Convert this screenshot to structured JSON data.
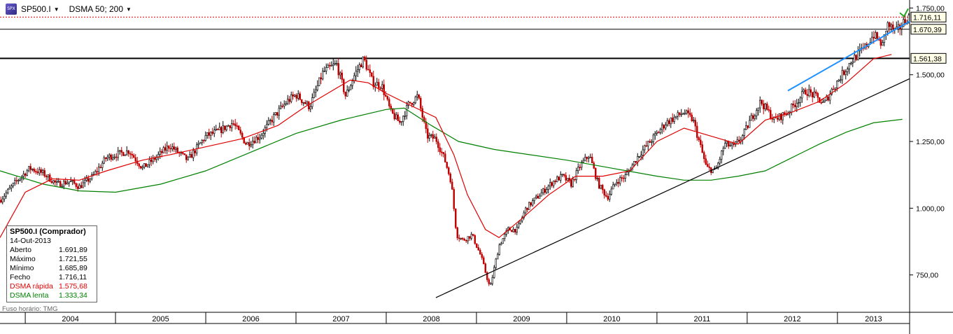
{
  "toolbar": {
    "symbol": "SP500.I",
    "indicator": "DSMA 50; 200",
    "symbol_icon": "chart-symbol-icon"
  },
  "infobox": {
    "title": "SP500.I (Comprador)",
    "date": "14-Out-2013",
    "rows": [
      {
        "label": "Aberto",
        "value": "1.691,89"
      },
      {
        "label": "Máximo",
        "value": "1.721,55"
      },
      {
        "label": "Mínimo",
        "value": "1.685,89"
      },
      {
        "label": "Fecho",
        "value": "1.716,11"
      },
      {
        "label": "DSMA rápida",
        "value": "1.575,68"
      },
      {
        "label": "DSMA lenta",
        "value": "1.333,34"
      }
    ]
  },
  "timezone": "Fuso horário: TMG",
  "colors": {
    "up": "#000000",
    "down": "#c00000",
    "fast_ma": "#e00000",
    "slow_ma": "#008000",
    "trendline": "#000000",
    "channel": "#1e90ff",
    "last_price": "#e00000"
  },
  "chart_data": {
    "type": "candlestick",
    "x_range": [
      2003.72,
      2013.8
    ],
    "ylim": [
      610,
      1780
    ],
    "y_ticks": [
      {
        "value": 750,
        "label": "750,00"
      },
      {
        "value": 1000,
        "label": "1.000,00"
      },
      {
        "value": 1250,
        "label": "1.250,00"
      },
      {
        "value": 1500,
        "label": "1.500,00"
      },
      {
        "value": 1750,
        "label": "1.750,00"
      }
    ],
    "x_labels": [
      {
        "year": 2004,
        "label": "2004"
      },
      {
        "year": 2005,
        "label": "2005"
      },
      {
        "year": 2006,
        "label": "2006"
      },
      {
        "year": 2007,
        "label": "2007"
      },
      {
        "year": 2008,
        "label": "2008"
      },
      {
        "year": 2009,
        "label": "2009"
      },
      {
        "year": 2010,
        "label": "2010"
      },
      {
        "year": 2011,
        "label": "2011"
      },
      {
        "year": 2012,
        "label": "2012"
      },
      {
        "year": 2013,
        "label": "2013"
      }
    ],
    "price_path": [
      [
        2003.72,
        1030
      ],
      [
        2003.9,
        1100
      ],
      [
        2004.05,
        1150
      ],
      [
        2004.2,
        1130
      ],
      [
        2004.35,
        1090
      ],
      [
        2004.5,
        1100
      ],
      [
        2004.6,
        1080
      ],
      [
        2004.75,
        1120
      ],
      [
        2004.9,
        1190
      ],
      [
        2005.0,
        1200
      ],
      [
        2005.15,
        1215
      ],
      [
        2005.3,
        1150
      ],
      [
        2005.45,
        1190
      ],
      [
        2005.6,
        1235
      ],
      [
        2005.8,
        1180
      ],
      [
        2006.0,
        1270
      ],
      [
        2006.15,
        1290
      ],
      [
        2006.3,
        1320
      ],
      [
        2006.45,
        1240
      ],
      [
        2006.6,
        1270
      ],
      [
        2006.75,
        1340
      ],
      [
        2006.9,
        1400
      ],
      [
        2007.0,
        1425
      ],
      [
        2007.15,
        1380
      ],
      [
        2007.3,
        1510
      ],
      [
        2007.45,
        1540
      ],
      [
        2007.55,
        1420
      ],
      [
        2007.65,
        1500
      ],
      [
        2007.75,
        1560
      ],
      [
        2007.85,
        1470
      ],
      [
        2007.95,
        1460
      ],
      [
        2008.05,
        1360
      ],
      [
        2008.15,
        1320
      ],
      [
        2008.25,
        1390
      ],
      [
        2008.35,
        1420
      ],
      [
        2008.45,
        1270
      ],
      [
        2008.55,
        1260
      ],
      [
        2008.65,
        1180
      ],
      [
        2008.72,
        1100
      ],
      [
        2008.78,
        900
      ],
      [
        2008.85,
        880
      ],
      [
        2008.95,
        900
      ],
      [
        2009.05,
        820
      ],
      [
        2009.15,
        700
      ],
      [
        2009.25,
        860
      ],
      [
        2009.35,
        920
      ],
      [
        2009.45,
        920
      ],
      [
        2009.55,
        1000
      ],
      [
        2009.7,
        1050
      ],
      [
        2009.85,
        1100
      ],
      [
        2009.95,
        1120
      ],
      [
        2010.05,
        1090
      ],
      [
        2010.15,
        1160
      ],
      [
        2010.25,
        1200
      ],
      [
        2010.35,
        1090
      ],
      [
        2010.45,
        1040
      ],
      [
        2010.55,
        1100
      ],
      [
        2010.65,
        1120
      ],
      [
        2010.8,
        1200
      ],
      [
        2010.95,
        1260
      ],
      [
        2011.1,
        1320
      ],
      [
        2011.2,
        1340
      ],
      [
        2011.3,
        1360
      ],
      [
        2011.4,
        1330
      ],
      [
        2011.55,
        1150
      ],
      [
        2011.65,
        1140
      ],
      [
        2011.75,
        1240
      ],
      [
        2011.85,
        1230
      ],
      [
        2011.95,
        1270
      ],
      [
        2012.05,
        1340
      ],
      [
        2012.15,
        1400
      ],
      [
        2012.3,
        1330
      ],
      [
        2012.45,
        1360
      ],
      [
        2012.55,
        1400
      ],
      [
        2012.65,
        1440
      ],
      [
        2012.75,
        1420
      ],
      [
        2012.85,
        1390
      ],
      [
        2012.95,
        1450
      ],
      [
        2013.05,
        1500
      ],
      [
        2013.15,
        1550
      ],
      [
        2013.3,
        1600
      ],
      [
        2013.4,
        1650
      ],
      [
        2013.5,
        1610
      ],
      [
        2013.55,
        1690
      ],
      [
        2013.65,
        1660
      ],
      [
        2013.72,
        1690
      ],
      [
        2013.78,
        1716
      ]
    ],
    "fast_ma": [
      [
        2003.72,
        890
      ],
      [
        2004.0,
        1060
      ],
      [
        2004.3,
        1110
      ],
      [
        2004.6,
        1105
      ],
      [
        2004.9,
        1140
      ],
      [
        2005.3,
        1180
      ],
      [
        2005.6,
        1200
      ],
      [
        2006.0,
        1230
      ],
      [
        2006.4,
        1260
      ],
      [
        2006.8,
        1310
      ],
      [
        2007.1,
        1380
      ],
      [
        2007.4,
        1440
      ],
      [
        2007.6,
        1480
      ],
      [
        2007.8,
        1470
      ],
      [
        2008.0,
        1430
      ],
      [
        2008.3,
        1380
      ],
      [
        2008.55,
        1340
      ],
      [
        2008.75,
        1200
      ],
      [
        2008.9,
        1050
      ],
      [
        2009.1,
        920
      ],
      [
        2009.25,
        890
      ],
      [
        2009.5,
        960
      ],
      [
        2009.8,
        1050
      ],
      [
        2010.1,
        1120
      ],
      [
        2010.4,
        1120
      ],
      [
        2010.7,
        1140
      ],
      [
        2011.0,
        1250
      ],
      [
        2011.3,
        1300
      ],
      [
        2011.6,
        1270
      ],
      [
        2011.9,
        1240
      ],
      [
        2012.2,
        1330
      ],
      [
        2012.5,
        1360
      ],
      [
        2012.8,
        1400
      ],
      [
        2013.1,
        1470
      ],
      [
        2013.4,
        1560
      ],
      [
        2013.6,
        1576
      ]
    ],
    "slow_ma": [
      [
        2003.72,
        1140
      ],
      [
        2004.2,
        1090
      ],
      [
        2004.6,
        1065
      ],
      [
        2005.0,
        1060
      ],
      [
        2005.5,
        1090
      ],
      [
        2006.0,
        1140
      ],
      [
        2006.5,
        1210
      ],
      [
        2007.0,
        1280
      ],
      [
        2007.5,
        1330
      ],
      [
        2008.0,
        1370
      ],
      [
        2008.2,
        1375
      ],
      [
        2008.5,
        1310
      ],
      [
        2008.8,
        1250
      ],
      [
        2009.2,
        1220
      ],
      [
        2009.6,
        1200
      ],
      [
        2010.0,
        1180
      ],
      [
        2010.5,
        1150
      ],
      [
        2011.0,
        1120
      ],
      [
        2011.3,
        1105
      ],
      [
        2011.6,
        1105
      ],
      [
        2011.9,
        1120
      ],
      [
        2012.2,
        1140
      ],
      [
        2012.5,
        1190
      ],
      [
        2012.8,
        1240
      ],
      [
        2013.1,
        1285
      ],
      [
        2013.4,
        1320
      ],
      [
        2013.72,
        1333
      ]
    ],
    "trendline": [
      [
        2008.55,
        665
      ],
      [
        2013.8,
        1485
      ]
    ],
    "channel": [
      [
        2012.45,
        1440
      ],
      [
        2013.8,
        1700
      ]
    ],
    "hlines": [
      {
        "value": 1561.38,
        "label": "1.561,38",
        "style": "thick"
      },
      {
        "value": 1670.39,
        "label": "1.670,39",
        "style": "thin"
      },
      {
        "value": 1716.11,
        "label": "1.716,11",
        "style": "dotted"
      }
    ],
    "last_price": 1716.11
  }
}
